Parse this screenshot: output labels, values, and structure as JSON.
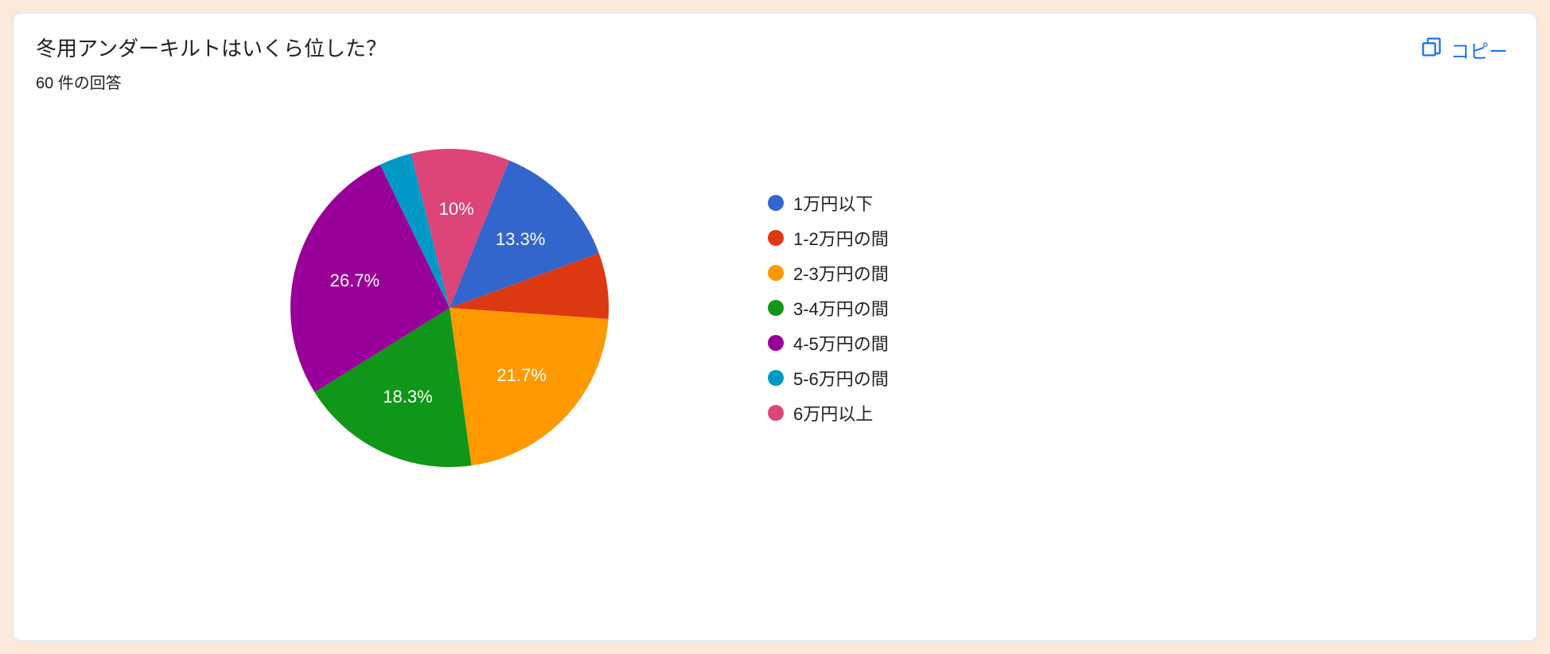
{
  "card": {
    "background_color": "#ffffff",
    "border_color": "#e0e0e0",
    "outer_background": "#fce9da"
  },
  "header": {
    "question_title": "冬用アンダーキルトはいくら位した？",
    "response_count_text": "60 件の回答",
    "copy_label": "コピー",
    "copy_color": "#1a73e8",
    "title_fontsize": 26,
    "subtitle_fontsize": 20
  },
  "chart": {
    "type": "pie",
    "radius": 200,
    "label_fontsize": 22,
    "label_color": "#ffffff",
    "start_angle_deg": 22,
    "slices": [
      {
        "label": "1万円以下",
        "value": 13.3,
        "color": "#3366cc",
        "display": "13.3%",
        "show_label": true
      },
      {
        "label": "1-2万円の間",
        "value": 6.7,
        "color": "#dc3912",
        "display": "6.7%",
        "show_label": false
      },
      {
        "label": "2-3万円の間",
        "value": 21.7,
        "color": "#ff9900",
        "display": "21.7%",
        "show_label": true
      },
      {
        "label": "3-4万円の間",
        "value": 18.3,
        "color": "#109618",
        "display": "18.3%",
        "show_label": true
      },
      {
        "label": "4-5万円の間",
        "value": 26.7,
        "color": "#990099",
        "display": "26.7%",
        "show_label": true
      },
      {
        "label": "5-6万円の間",
        "value": 3.3,
        "color": "#0099c6",
        "display": "3.3%",
        "show_label": false
      },
      {
        "label": "6万円以上",
        "value": 10.0,
        "color": "#dd4477",
        "display": "10%",
        "show_label": true
      }
    ]
  },
  "legend": {
    "fontsize": 22,
    "dot_size": 20,
    "text_color": "#202124"
  }
}
